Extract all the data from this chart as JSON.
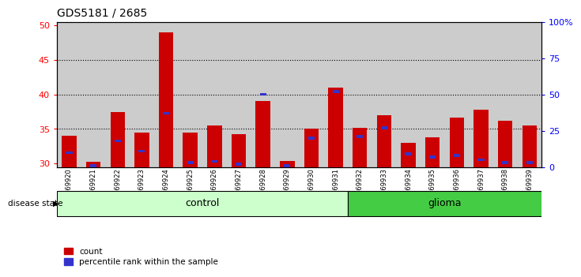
{
  "title": "GDS5181 / 2685",
  "samples": [
    "GSM769920",
    "GSM769921",
    "GSM769922",
    "GSM769923",
    "GSM769924",
    "GSM769925",
    "GSM769926",
    "GSM769927",
    "GSM769928",
    "GSM769929",
    "GSM769930",
    "GSM769931",
    "GSM769932",
    "GSM769933",
    "GSM769934",
    "GSM769935",
    "GSM769936",
    "GSM769937",
    "GSM769938",
    "GSM769939"
  ],
  "count_values": [
    34.0,
    30.3,
    37.5,
    34.5,
    49.0,
    34.5,
    35.5,
    34.2,
    39.0,
    30.4,
    35.0,
    41.0,
    35.2,
    37.0,
    33.0,
    33.8,
    36.7,
    37.8,
    36.2,
    35.5
  ],
  "percentile_pct": [
    10,
    1,
    18,
    11,
    37,
    3,
    4,
    2,
    50,
    1,
    20,
    52,
    21,
    27,
    9,
    7,
    8,
    5,
    3,
    3
  ],
  "control_count": 12,
  "glioma_count": 8,
  "ylim_left": [
    29.5,
    50.5
  ],
  "yticks_left": [
    30,
    35,
    40,
    45,
    50
  ],
  "ylim_right": [
    0,
    100
  ],
  "yticks_right": [
    0,
    25,
    50,
    75,
    100
  ],
  "ytick_labels_right": [
    "0",
    "25",
    "50",
    "75",
    "100%"
  ],
  "grid_values": [
    35,
    40,
    45
  ],
  "bar_color": "#CC0000",
  "pct_color": "#3333CC",
  "bar_bg_color": "#CCCCCC",
  "control_bg": "#CCFFCC",
  "glioma_bg": "#44CC44",
  "legend_count": "count",
  "legend_pct": "percentile rank within the sample",
  "disease_state_label": "disease state",
  "control_label": "control",
  "glioma_label": "glioma"
}
